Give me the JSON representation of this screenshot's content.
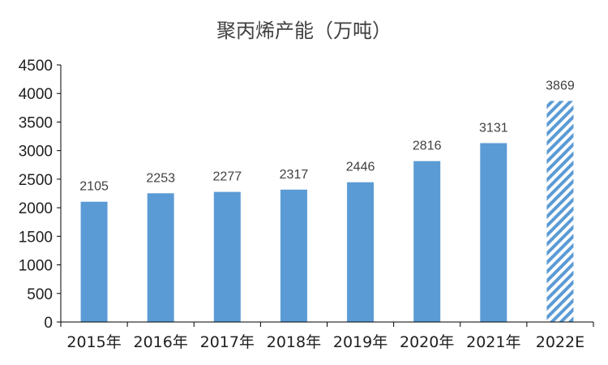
{
  "chart_data": {
    "type": "bar",
    "title": "聚丙烯产能（万吨）",
    "xlabel": "",
    "ylabel": "",
    "categories": [
      "2015年",
      "2016年",
      "2017年",
      "2018年",
      "2019年",
      "2020年",
      "2021年",
      "2022E"
    ],
    "values": [
      2105,
      2253,
      2277,
      2317,
      2446,
      2816,
      3131,
      3869
    ],
    "data_labels": [
      "2105",
      "2253",
      "2277",
      "2317",
      "2446",
      "2816",
      "3131",
      "3869"
    ],
    "estimated_index": 7,
    "ylim": [
      0,
      4500
    ],
    "yticks": [
      0,
      500,
      1000,
      1500,
      2000,
      2500,
      3000,
      3500,
      4000,
      4500
    ],
    "grid": false,
    "legend": "none",
    "colors": {
      "bar": "#5b9bd5",
      "hatch": "#5b9bd5",
      "axis": "#000000"
    }
  }
}
